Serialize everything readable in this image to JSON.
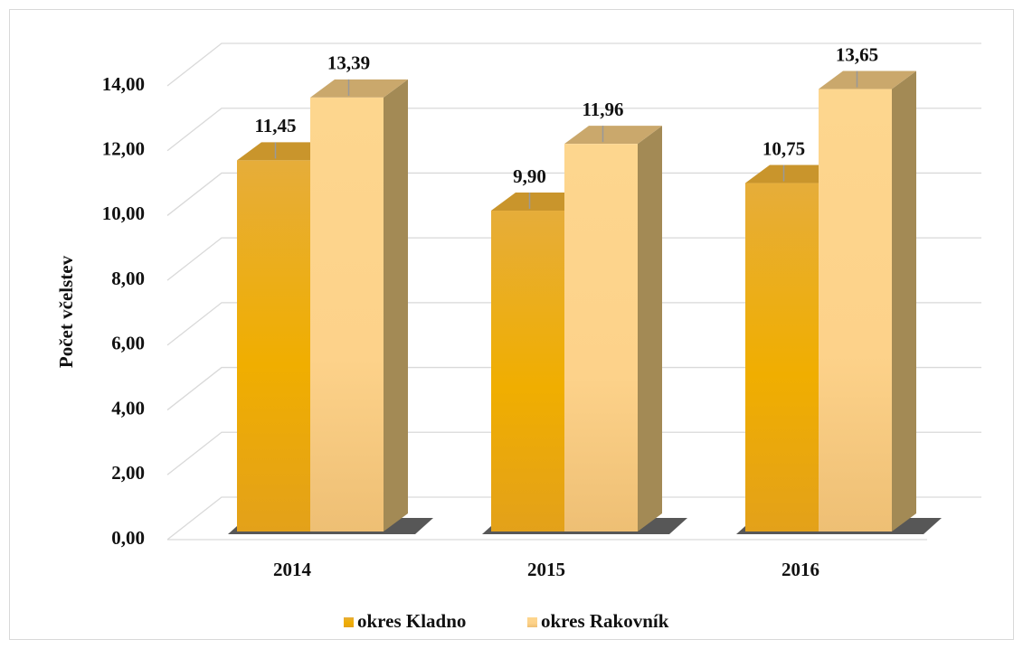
{
  "chart_data": {
    "type": "bar3d",
    "categories": [
      "2014",
      "2015",
      "2016"
    ],
    "series": [
      {
        "name": "okres Kladno",
        "color": "#eba81c",
        "values": [
          11.45,
          9.9,
          10.75
        ],
        "value_labels": [
          "11,45",
          "9,90",
          "10,75"
        ]
      },
      {
        "name": "okres Rakovník",
        "color": "#fbd38c",
        "values": [
          13.39,
          11.96,
          13.65
        ],
        "value_labels": [
          "13,39",
          "11,96",
          "13,65"
        ]
      }
    ],
    "ylabel": "Počet včelstev",
    "ylim": [
      0,
      14
    ],
    "yticks": [
      {
        "value": 0,
        "label": "0,00"
      },
      {
        "value": 2,
        "label": "2,00"
      },
      {
        "value": 4,
        "label": "4,00"
      },
      {
        "value": 6,
        "label": "6,00"
      },
      {
        "value": 8,
        "label": "8,00"
      },
      {
        "value": 10,
        "label": "10,00"
      },
      {
        "value": 12,
        "label": "12,00"
      },
      {
        "value": 14,
        "label": "14,00"
      }
    ],
    "grid": true,
    "legend": "bottom"
  }
}
